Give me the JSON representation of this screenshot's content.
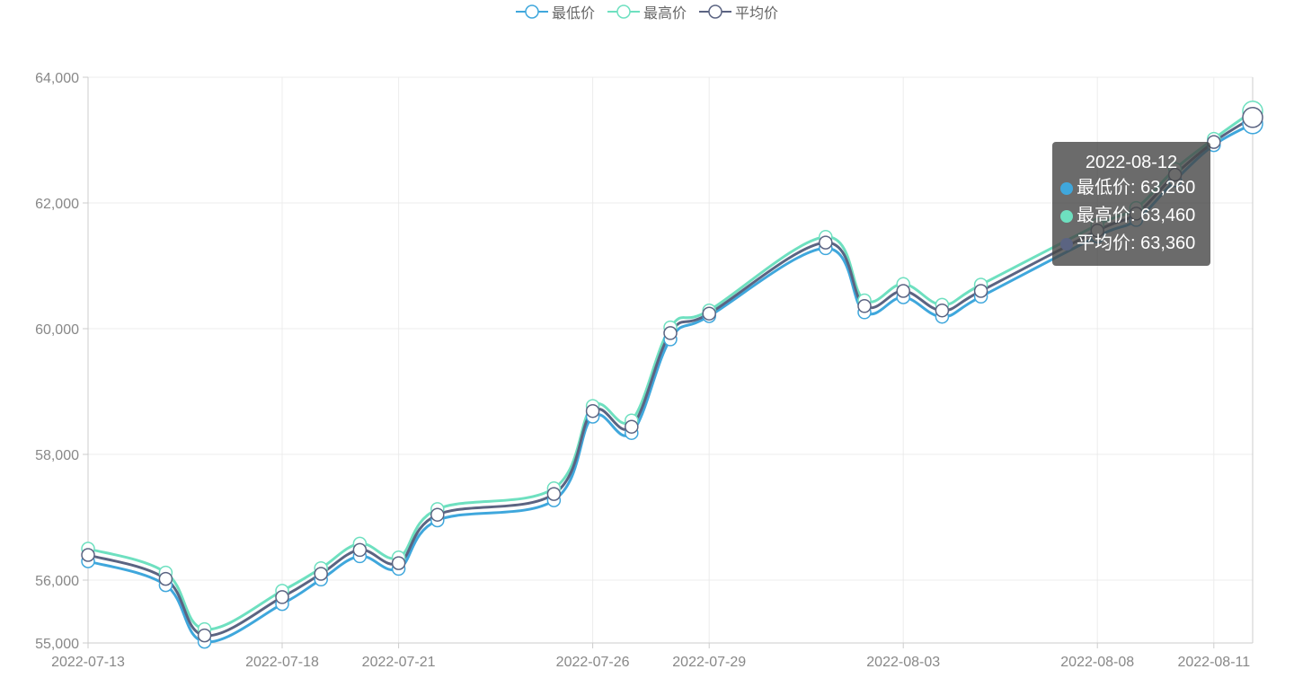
{
  "legend": [
    {
      "name": "最低价",
      "color": "#3fa7dc"
    },
    {
      "name": "最高价",
      "color": "#6ee0c0"
    },
    {
      "name": "平均价",
      "color": "#5b6482"
    }
  ],
  "tooltip": {
    "title": "2022-08-12",
    "rows": [
      {
        "label": "最低价: 63,260",
        "color": "#3fa7dc"
      },
      {
        "label": "最高价: 63,460",
        "color": "#6ee0c0"
      },
      {
        "label": "平均价: 63,360",
        "color": "#5b6482"
      }
    ]
  },
  "chart_data": {
    "type": "line",
    "smooth": true,
    "x": [
      "2022-07-13",
      "2022-07-15",
      "2022-07-16",
      "2022-07-18",
      "2022-07-19",
      "2022-07-20",
      "2022-07-21",
      "2022-07-22",
      "2022-07-25",
      "2022-07-26",
      "2022-07-27",
      "2022-07-28",
      "2022-07-29",
      "2022-08-01",
      "2022-08-02",
      "2022-08-03",
      "2022-08-04",
      "2022-08-05",
      "2022-08-08",
      "2022-08-09",
      "2022-08-10",
      "2022-08-11",
      "2022-08-12"
    ],
    "x_tick_labels": [
      "2022-07-13",
      "2022-07-18",
      "2022-07-21",
      "2022-07-26",
      "2022-07-29",
      "2022-08-03",
      "2022-08-08",
      "2022-08-11"
    ],
    "series": [
      {
        "name": "最低价",
        "color": "#3fa7dc",
        "values": [
          56300,
          55920,
          55020,
          55620,
          56010,
          56380,
          56180,
          56950,
          57270,
          58600,
          58340,
          59830,
          60200,
          61280,
          60260,
          60500,
          60190,
          60510,
          61470,
          61730,
          62360,
          62920,
          63260
        ]
      },
      {
        "name": "最高价",
        "color": "#6ee0c0",
        "values": [
          56500,
          56120,
          55220,
          55830,
          56190,
          56580,
          56360,
          57130,
          57460,
          58770,
          58540,
          60020,
          60290,
          61460,
          60450,
          60710,
          60380,
          60700,
          61650,
          61920,
          62540,
          63020,
          63460
        ]
      },
      {
        "name": "平均价",
        "color": "#5b6482",
        "values": [
          56400,
          56020,
          55120,
          55730,
          56100,
          56480,
          56270,
          57040,
          57370,
          58690,
          58440,
          59930,
          60240,
          61370,
          60360,
          60600,
          60290,
          60600,
          61560,
          61830,
          62450,
          62970,
          63360
        ]
      }
    ],
    "yticks": [
      55000,
      56000,
      58000,
      60000,
      62000,
      64000
    ],
    "y_tick_labels": [
      "55,000",
      "56,000",
      "58,000",
      "60,000",
      "62,000",
      "64,000"
    ],
    "ylim": [
      55000,
      64000
    ],
    "grid": true,
    "legend_position": "top-center"
  }
}
